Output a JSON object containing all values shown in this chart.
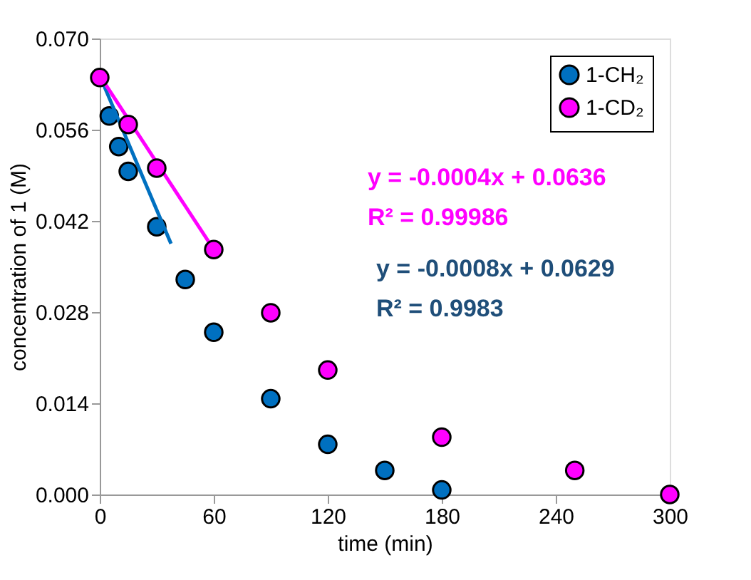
{
  "chart_data": {
    "type": "scatter",
    "xlabel": "time (min)",
    "ylabel": "concentration of 1  (M)",
    "xlim": [
      0,
      300
    ],
    "xticks": [
      0,
      60,
      120,
      180,
      240,
      300
    ],
    "ylim": [
      0,
      0.07
    ],
    "yticks": [
      {
        "value": 0,
        "label": "0.000"
      },
      0.014,
      0.028,
      0.042,
      0.056,
      {
        "value": 0.07,
        "label": "0.070"
      }
    ],
    "series": [
      {
        "name": "1-CH₂",
        "color": "#0070c0",
        "x": [
          5,
          10,
          15,
          30,
          45,
          60,
          90,
          120,
          150,
          180
        ],
        "values": [
          0.0581,
          0.0534,
          0.0496,
          0.0411,
          0.033,
          0.0249,
          0.0147,
          0.0077,
          0.0037,
          0.0007
        ]
      },
      {
        "name": "1-CD₂",
        "color": "#ff00ff",
        "x": [
          0,
          15,
          30,
          60,
          90,
          120,
          180,
          250,
          300
        ],
        "values": [
          0.064,
          0.0568,
          0.0501,
          0.0376,
          0.0279,
          0.0191,
          0.0088,
          0.0037,
          0.0
        ]
      },
      {
        "type": "line",
        "marker": "none",
        "color": "#0070c0",
        "x": [
          0,
          37.5
        ],
        "values": [
          0.0643,
          0.0385
        ]
      },
      {
        "type": "line",
        "marker": "none",
        "color": "#ff00ff",
        "x": [
          0,
          60
        ],
        "values": [
          0.0643,
          0.0376
        ]
      }
    ],
    "annotations": [
      "y = -0.0004x + 0.0636",
      "R² = 0.99986",
      "y = -0.0008x + 0.0629",
      "R² = 0.9983"
    ],
    "marker": "circle",
    "legend": "top right",
    "grid": false
  }
}
